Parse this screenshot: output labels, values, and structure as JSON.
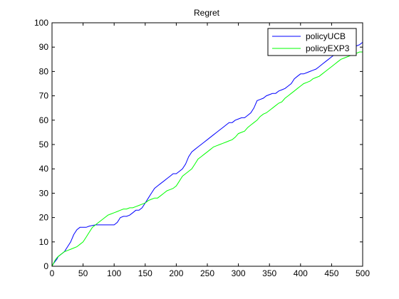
{
  "chart_data": {
    "type": "line",
    "title": "Regret",
    "xlabel": "",
    "ylabel": "",
    "xlim": [
      0,
      500
    ],
    "ylim": [
      0,
      100
    ],
    "xticks": [
      0,
      50,
      100,
      150,
      200,
      250,
      300,
      350,
      400,
      450,
      500
    ],
    "yticks": [
      0,
      10,
      20,
      30,
      40,
      50,
      60,
      70,
      80,
      90,
      100
    ],
    "grid": false,
    "legend_position": "top-right",
    "series": [
      {
        "name": "policyUCB",
        "color": "#0000ff",
        "x": [
          0,
          2,
          5,
          8,
          10,
          15,
          20,
          25,
          30,
          35,
          40,
          45,
          50,
          55,
          60,
          70,
          80,
          90,
          100,
          105,
          110,
          115,
          120,
          125,
          130,
          135,
          140,
          145,
          150,
          155,
          160,
          165,
          170,
          175,
          180,
          185,
          190,
          195,
          200,
          205,
          210,
          215,
          220,
          225,
          230,
          235,
          240,
          245,
          250,
          255,
          260,
          265,
          270,
          275,
          280,
          285,
          290,
          295,
          300,
          305,
          310,
          315,
          320,
          325,
          330,
          335,
          340,
          345,
          350,
          355,
          360,
          365,
          370,
          375,
          380,
          385,
          390,
          395,
          400,
          405,
          410,
          415,
          420,
          425,
          430,
          435,
          440,
          445,
          450,
          455,
          460,
          465,
          470,
          475,
          480,
          485,
          490,
          495,
          500
        ],
        "y": [
          0,
          1,
          2,
          3,
          4,
          5,
          6,
          8,
          10,
          13,
          15,
          16,
          16,
          16,
          16.5,
          17,
          17,
          17,
          17,
          18,
          20,
          20.5,
          20.5,
          21,
          22,
          23,
          23,
          24,
          26,
          28,
          30,
          32,
          33,
          34,
          35,
          36,
          37,
          38,
          38,
          39,
          40,
          42,
          45,
          47,
          48,
          49,
          50,
          51,
          52,
          53,
          54,
          55,
          56,
          57,
          58,
          59,
          59,
          60,
          60.5,
          61,
          61,
          62,
          63,
          65,
          68,
          68.5,
          69,
          70,
          70.5,
          71,
          71,
          72,
          72.5,
          73,
          74,
          75,
          77,
          78,
          79,
          79,
          79.5,
          80,
          80.5,
          81,
          82,
          83,
          84,
          85,
          86,
          87,
          88,
          88.5,
          89,
          89.5,
          90,
          90,
          90.5,
          91,
          92
        ]
      },
      {
        "name": "policyEXP3",
        "color": "#00ff00",
        "x": [
          0,
          2,
          5,
          8,
          10,
          15,
          20,
          25,
          30,
          35,
          40,
          45,
          50,
          55,
          60,
          65,
          70,
          75,
          80,
          85,
          90,
          95,
          100,
          105,
          110,
          115,
          120,
          125,
          130,
          135,
          140,
          145,
          150,
          155,
          160,
          165,
          170,
          175,
          180,
          185,
          190,
          195,
          200,
          205,
          210,
          215,
          220,
          225,
          230,
          235,
          240,
          245,
          250,
          255,
          260,
          265,
          270,
          275,
          280,
          285,
          290,
          295,
          300,
          305,
          310,
          315,
          320,
          325,
          330,
          335,
          340,
          345,
          350,
          355,
          360,
          365,
          370,
          375,
          380,
          385,
          390,
          395,
          400,
          405,
          410,
          415,
          420,
          425,
          430,
          435,
          440,
          445,
          450,
          455,
          460,
          465,
          470,
          475,
          480,
          485,
          490,
          495,
          500
        ],
        "y": [
          0,
          1,
          2.5,
          3.5,
          4,
          5,
          6,
          6.5,
          7,
          7.5,
          8,
          9,
          10,
          12,
          14,
          16,
          17,
          18,
          19,
          20,
          21,
          21.5,
          22,
          22.5,
          23,
          23.5,
          23.5,
          24,
          24,
          24.5,
          25,
          25.5,
          26,
          27,
          27.5,
          28,
          28,
          29,
          30,
          31,
          31.5,
          32,
          33,
          35,
          37,
          38,
          39,
          40,
          42,
          44,
          45,
          46,
          47,
          48,
          49,
          49.5,
          50,
          50.5,
          51,
          51.5,
          52,
          53,
          54.5,
          55,
          55.5,
          57,
          58,
          59,
          60,
          61.5,
          62.5,
          63,
          64,
          65,
          66,
          67,
          67.5,
          69,
          70,
          71,
          72,
          73,
          74,
          75,
          75.5,
          76,
          77,
          77.5,
          78,
          79,
          80,
          81,
          82,
          83,
          84,
          85,
          85.5,
          86,
          86.5,
          87,
          87.5,
          88,
          88
        ]
      }
    ]
  }
}
